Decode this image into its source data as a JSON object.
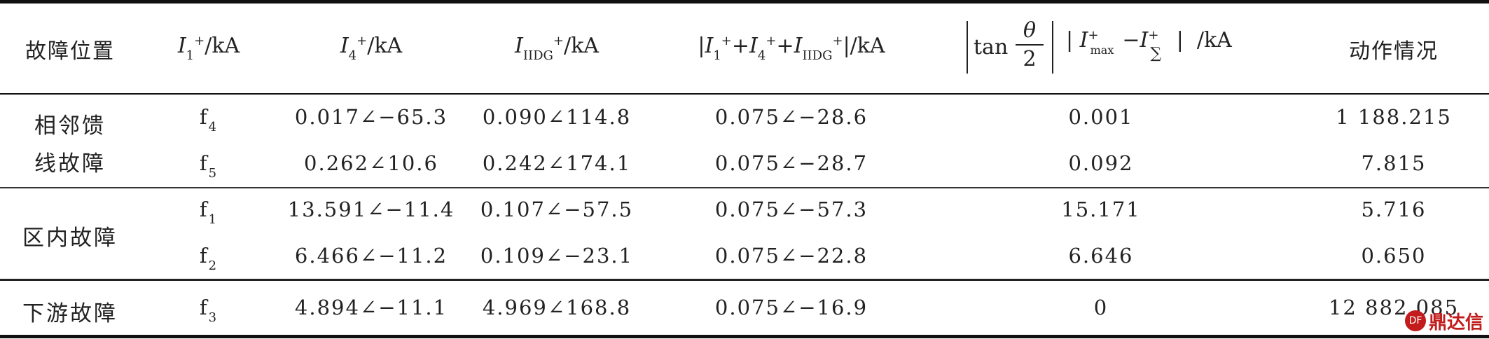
{
  "headers": {
    "position": "故障位置",
    "i1": "I₁⁺/kA",
    "i4": "I₄⁺/kA",
    "iiidg": "I_IIDG⁺/kA",
    "sum": "|I₁⁺+I₄⁺+I_IIDG⁺|/kA",
    "tan": "tan",
    "theta": "θ",
    "two": "2",
    "imax": "|I⁺max−I⁺∑| /kA",
    "action": "动作情况"
  },
  "groups": [
    {
      "label_line1": "相邻馈",
      "label_line2": "线故障"
    },
    {
      "label_line1": "区内故障"
    },
    {
      "label_line1": "下游故障"
    }
  ],
  "rows": [
    {
      "point": "f",
      "point_sub": "4",
      "i1": "0.017∠−65.3",
      "i4": "0.090∠114.8",
      "sum": "0.075∠−28.6",
      "tan": "0.001",
      "action": "1 188.215"
    },
    {
      "point": "f",
      "point_sub": "5",
      "i1": "0.262∠10.6",
      "i4": "0.242∠174.1",
      "sum": "0.075∠−28.7",
      "tan": "0.092",
      "action": "7.815"
    },
    {
      "point": "f",
      "point_sub": "1",
      "i1": "13.591∠−11.4",
      "i4": "0.107∠−57.5",
      "sum": "0.075∠−57.3",
      "tan": "15.171",
      "action": "5.716"
    },
    {
      "point": "f",
      "point_sub": "2",
      "i1": "6.466∠−11.2",
      "i4": "0.109∠−23.1",
      "sum": "0.075∠−22.8",
      "tan": "6.646",
      "action": "0.650"
    },
    {
      "point": "f",
      "point_sub": "3",
      "i1": "4.894∠−11.1",
      "i4": "4.969∠168.8",
      "sum": "0.075∠−16.9",
      "tan": "0",
      "action": "12 882.085"
    }
  ],
  "watermark": {
    "circle": "DF",
    "text": "鼎达信"
  }
}
